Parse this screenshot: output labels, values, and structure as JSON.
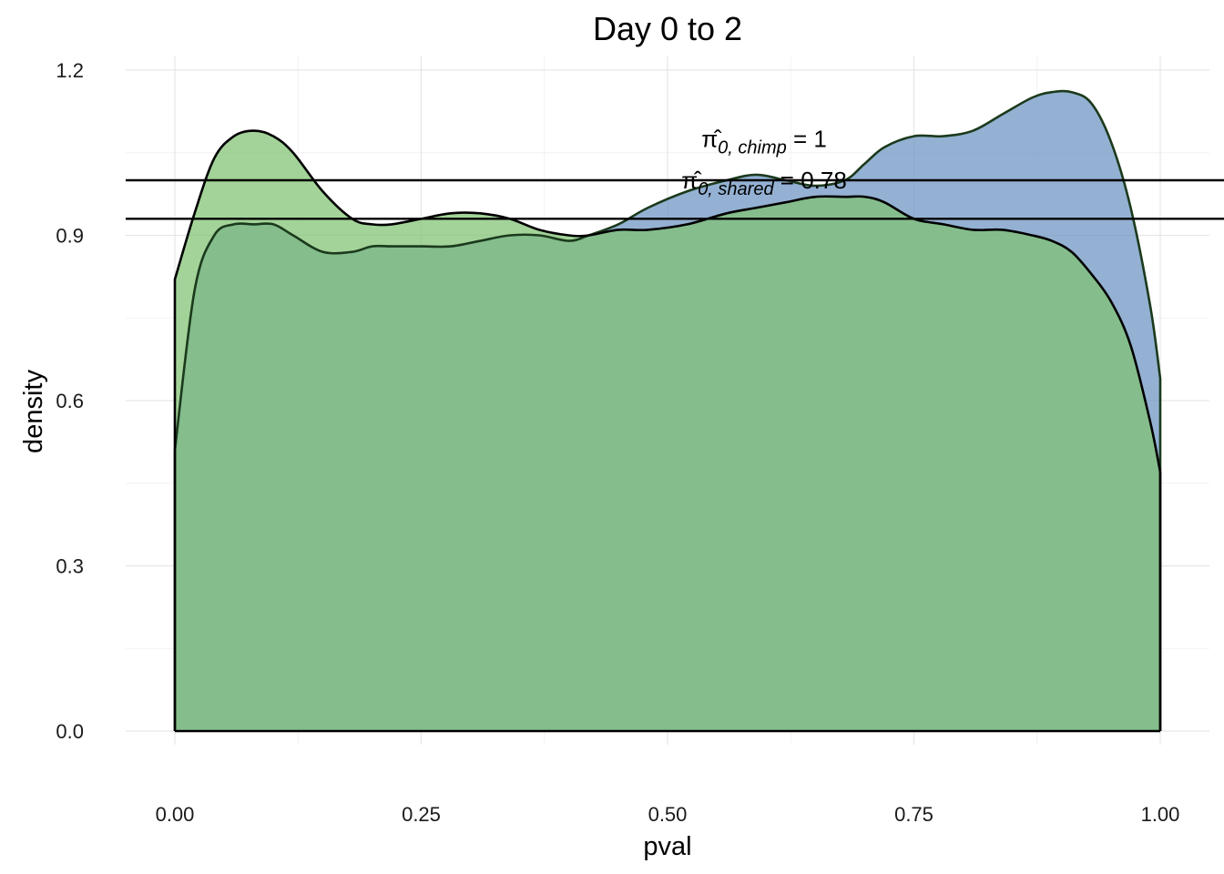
{
  "chart_data": {
    "type": "area",
    "title": "Day 0 to 2",
    "xlabel": "pval",
    "ylabel": "density",
    "xlim": [
      0,
      1
    ],
    "ylim": [
      0,
      1.2
    ],
    "x_ticks": [
      0,
      0.25,
      0.5,
      0.75,
      1
    ],
    "x_tick_labels": [
      "0.00",
      "0.25",
      "0.50",
      "0.75",
      "1.00"
    ],
    "y_ticks": [
      0,
      0.3,
      0.6,
      0.9,
      1.2
    ],
    "y_tick_labels": [
      "0.0",
      "0.3",
      "0.6",
      "0.9",
      "1.2"
    ],
    "grid": true,
    "legend": "none",
    "x": [
      0.0,
      0.02,
      0.04,
      0.06,
      0.08,
      0.1,
      0.12,
      0.15,
      0.18,
      0.2,
      0.22,
      0.25,
      0.28,
      0.31,
      0.34,
      0.37,
      0.4,
      0.42,
      0.45,
      0.48,
      0.52,
      0.56,
      0.59,
      0.62,
      0.65,
      0.68,
      0.7,
      0.72,
      0.75,
      0.78,
      0.81,
      0.84,
      0.87,
      0.89,
      0.91,
      0.93,
      0.95,
      0.97,
      0.99,
      1.0
    ],
    "series": [
      {
        "color": "#6b93c2",
        "values": [
          0.51,
          0.8,
          0.9,
          0.92,
          0.92,
          0.92,
          0.9,
          0.87,
          0.87,
          0.88,
          0.88,
          0.88,
          0.88,
          0.89,
          0.9,
          0.9,
          0.89,
          0.9,
          0.92,
          0.95,
          0.98,
          1.0,
          1.01,
          1.0,
          0.99,
          1.0,
          1.03,
          1.06,
          1.08,
          1.08,
          1.09,
          1.12,
          1.15,
          1.16,
          1.16,
          1.14,
          1.07,
          0.95,
          0.77,
          0.64
        ]
      },
      {
        "color": "#7fc272",
        "values": [
          0.82,
          0.94,
          1.04,
          1.08,
          1.09,
          1.08,
          1.05,
          0.98,
          0.93,
          0.92,
          0.92,
          0.93,
          0.94,
          0.94,
          0.93,
          0.91,
          0.9,
          0.9,
          0.91,
          0.91,
          0.92,
          0.94,
          0.95,
          0.96,
          0.97,
          0.97,
          0.97,
          0.96,
          0.93,
          0.92,
          0.91,
          0.91,
          0.9,
          0.89,
          0.87,
          0.83,
          0.78,
          0.7,
          0.56,
          0.47
        ]
      }
    ],
    "overlap_color": "#5a9d78",
    "hlines": [
      1.0,
      0.93
    ],
    "annotations": [
      {
        "symbol": "π̂",
        "sub": "0, chimp",
        "text": "= 1",
        "x": 0.598,
        "y": 1.06
      },
      {
        "symbol": "π̂",
        "sub": "0, shared",
        "text": "= 0.78",
        "x": 0.598,
        "y": 0.985
      }
    ]
  }
}
